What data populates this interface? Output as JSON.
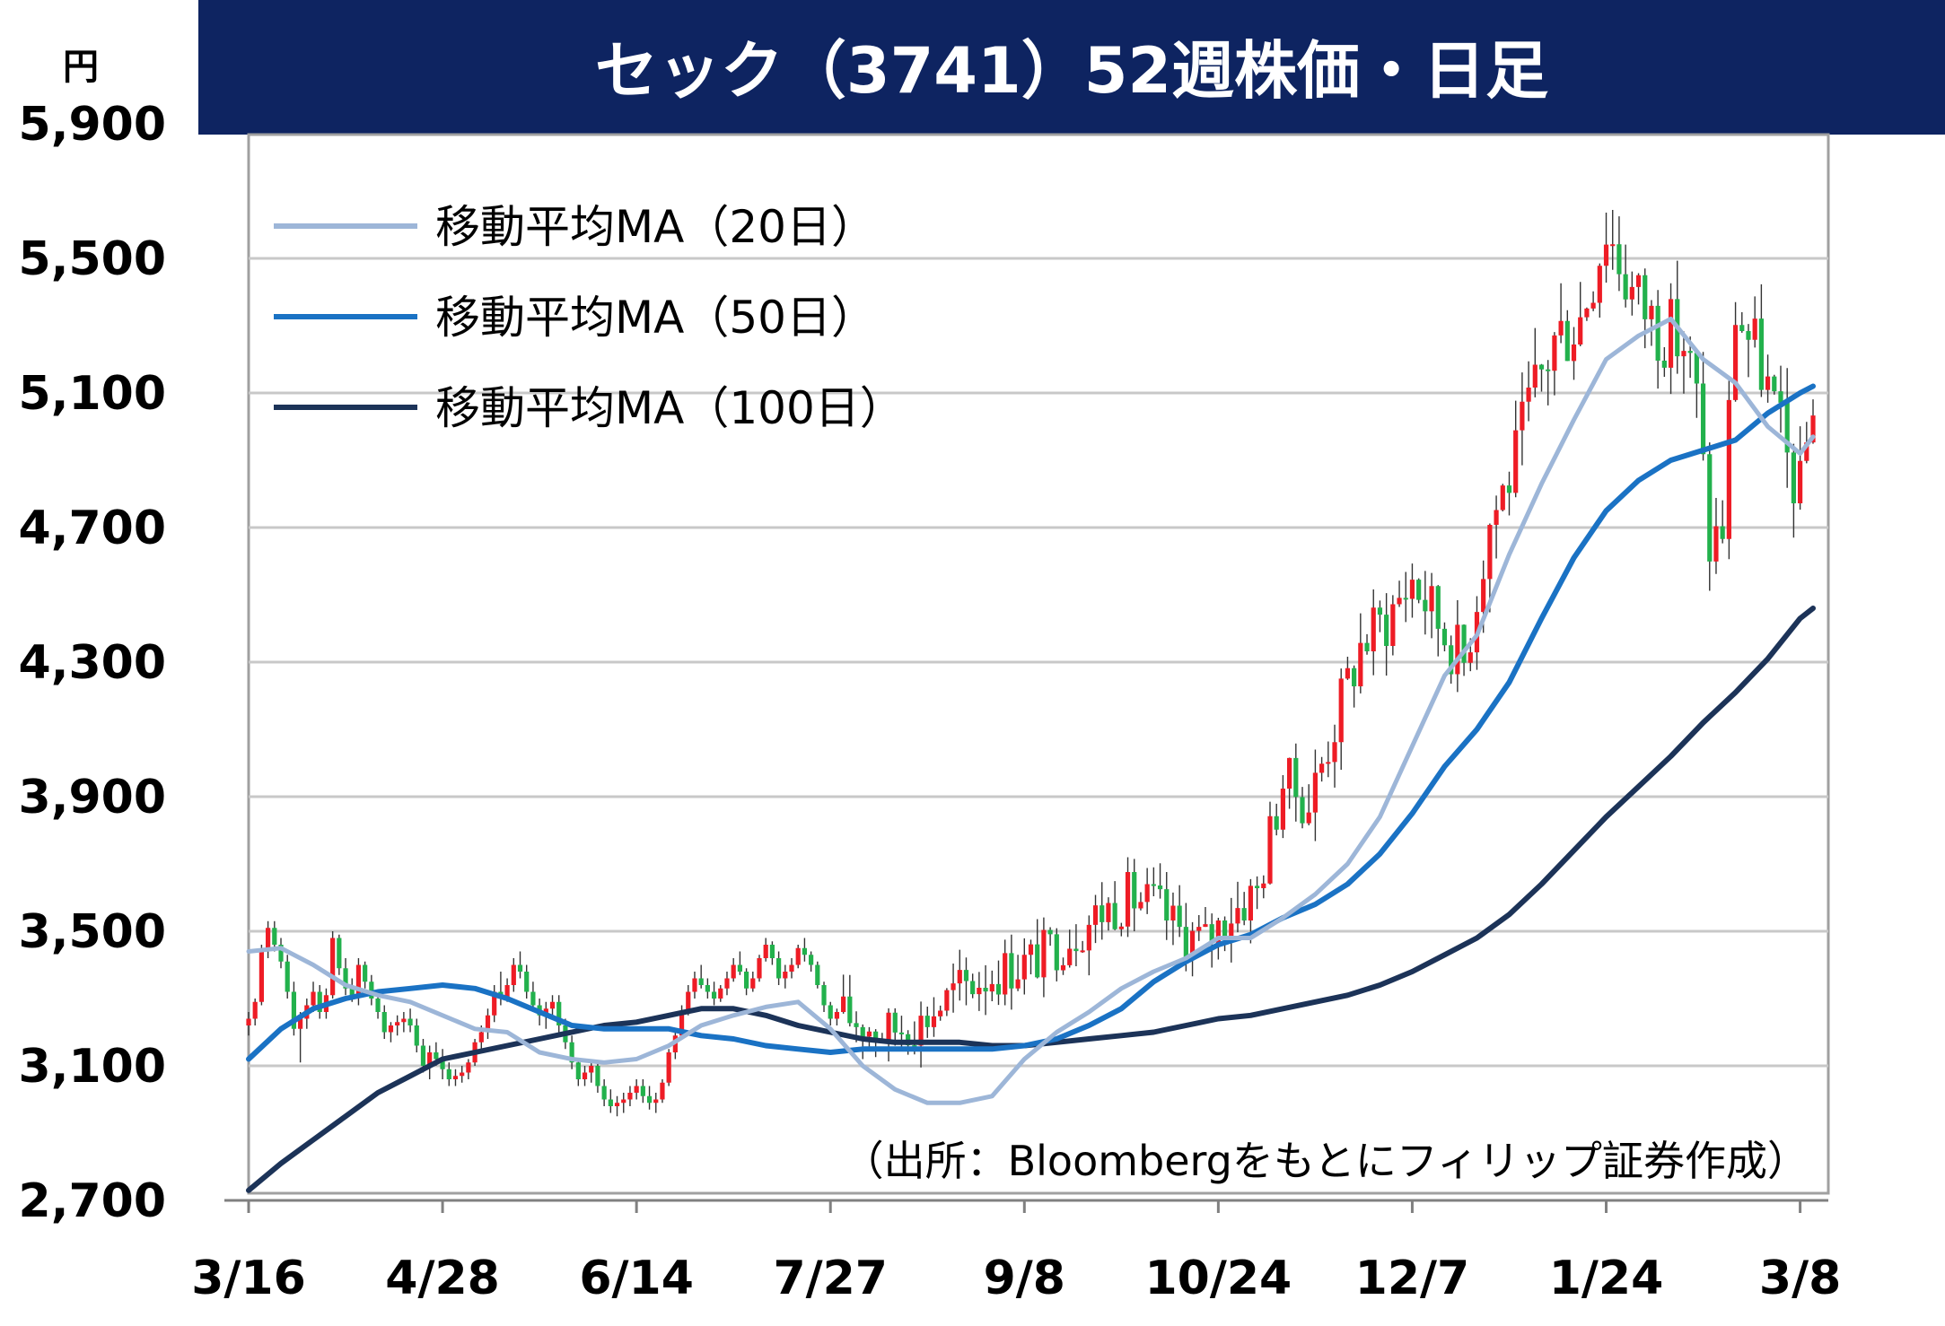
{
  "chart_data": {
    "type": "candlestick",
    "title": "セック（3741）52週株価・日足",
    "unit": "円",
    "source": "（出所：Bloombergをもとにフィリップ証券作成）",
    "ylim": [
      2700,
      5900
    ],
    "yticks": [
      2700,
      3100,
      3500,
      3900,
      4300,
      4700,
      5100,
      5500,
      5900
    ],
    "ytick_labels": [
      "2,700",
      "3,100",
      "3,500",
      "3,900",
      "4,300",
      "4,700",
      "5,100",
      "5,500",
      "5,900"
    ],
    "xtick_labels": [
      "3/16",
      "4/28",
      "6/14",
      "7/27",
      "9/8",
      "10/24",
      "12/7",
      "1/24",
      "3/8"
    ],
    "xtick_index": [
      0,
      30,
      60,
      90,
      120,
      150,
      180,
      210,
      240
    ],
    "grid": "horizontal",
    "legend_position": "top-left",
    "colors": {
      "up": "#ee1c25",
      "down": "#22b14c",
      "ma20": "#9db6d8",
      "ma50": "#1a72c4",
      "ma100": "#1c3358",
      "title_bg": "#0e2461",
      "grid": "#c8c8c8"
    },
    "series": [
      {
        "name": "移動平均MA（20日）",
        "key": "ma20"
      },
      {
        "name": "移動平均MA（50日）",
        "key": "ma50"
      },
      {
        "name": "移動平均MA（100日）",
        "key": "ma100"
      }
    ],
    "ma20": [
      [
        0,
        3440
      ],
      [
        5,
        3450
      ],
      [
        10,
        3400
      ],
      [
        15,
        3340
      ],
      [
        20,
        3310
      ],
      [
        25,
        3290
      ],
      [
        30,
        3250
      ],
      [
        35,
        3210
      ],
      [
        40,
        3200
      ],
      [
        45,
        3140
      ],
      [
        50,
        3120
      ],
      [
        55,
        3110
      ],
      [
        60,
        3120
      ],
      [
        65,
        3160
      ],
      [
        70,
        3220
      ],
      [
        75,
        3250
      ],
      [
        80,
        3275
      ],
      [
        85,
        3290
      ],
      [
        90,
        3210
      ],
      [
        95,
        3100
      ],
      [
        100,
        3030
      ],
      [
        105,
        2990
      ],
      [
        110,
        2990
      ],
      [
        115,
        3010
      ],
      [
        120,
        3120
      ],
      [
        125,
        3200
      ],
      [
        130,
        3260
      ],
      [
        135,
        3330
      ],
      [
        140,
        3380
      ],
      [
        145,
        3420
      ],
      [
        150,
        3480
      ],
      [
        155,
        3480
      ],
      [
        160,
        3540
      ],
      [
        165,
        3610
      ],
      [
        170,
        3700
      ],
      [
        175,
        3840
      ],
      [
        180,
        4050
      ],
      [
        185,
        4260
      ],
      [
        190,
        4380
      ],
      [
        195,
        4620
      ],
      [
        200,
        4830
      ],
      [
        205,
        5020
      ],
      [
        210,
        5200
      ],
      [
        215,
        5270
      ],
      [
        220,
        5320
      ],
      [
        225,
        5200
      ],
      [
        230,
        5130
      ],
      [
        235,
        5000
      ],
      [
        240,
        4920
      ],
      [
        242,
        4970
      ]
    ],
    "ma50": [
      [
        0,
        3120
      ],
      [
        5,
        3210
      ],
      [
        10,
        3270
      ],
      [
        15,
        3300
      ],
      [
        20,
        3320
      ],
      [
        25,
        3330
      ],
      [
        30,
        3340
      ],
      [
        35,
        3330
      ],
      [
        40,
        3300
      ],
      [
        45,
        3260
      ],
      [
        50,
        3220
      ],
      [
        55,
        3210
      ],
      [
        60,
        3210
      ],
      [
        65,
        3210
      ],
      [
        70,
        3190
      ],
      [
        75,
        3180
      ],
      [
        80,
        3160
      ],
      [
        85,
        3150
      ],
      [
        90,
        3140
      ],
      [
        95,
        3150
      ],
      [
        100,
        3150
      ],
      [
        105,
        3150
      ],
      [
        110,
        3150
      ],
      [
        115,
        3150
      ],
      [
        120,
        3160
      ],
      [
        125,
        3180
      ],
      [
        130,
        3220
      ],
      [
        135,
        3270
      ],
      [
        140,
        3350
      ],
      [
        145,
        3410
      ],
      [
        150,
        3460
      ],
      [
        155,
        3490
      ],
      [
        160,
        3540
      ],
      [
        165,
        3580
      ],
      [
        170,
        3640
      ],
      [
        175,
        3730
      ],
      [
        180,
        3850
      ],
      [
        185,
        3990
      ],
      [
        190,
        4100
      ],
      [
        195,
        4240
      ],
      [
        200,
        4430
      ],
      [
        205,
        4610
      ],
      [
        210,
        4750
      ],
      [
        215,
        4840
      ],
      [
        220,
        4900
      ],
      [
        225,
        4930
      ],
      [
        230,
        4960
      ],
      [
        235,
        5040
      ],
      [
        240,
        5100
      ],
      [
        242,
        5120
      ]
    ],
    "ma100": [
      [
        0,
        2730
      ],
      [
        5,
        2810
      ],
      [
        10,
        2880
      ],
      [
        15,
        2950
      ],
      [
        20,
        3020
      ],
      [
        25,
        3070
      ],
      [
        30,
        3120
      ],
      [
        35,
        3140
      ],
      [
        40,
        3160
      ],
      [
        45,
        3180
      ],
      [
        50,
        3200
      ],
      [
        55,
        3220
      ],
      [
        60,
        3230
      ],
      [
        65,
        3250
      ],
      [
        70,
        3270
      ],
      [
        75,
        3270
      ],
      [
        80,
        3250
      ],
      [
        85,
        3220
      ],
      [
        90,
        3200
      ],
      [
        95,
        3180
      ],
      [
        100,
        3170
      ],
      [
        105,
        3170
      ],
      [
        110,
        3170
      ],
      [
        115,
        3160
      ],
      [
        120,
        3160
      ],
      [
        125,
        3170
      ],
      [
        130,
        3180
      ],
      [
        135,
        3190
      ],
      [
        140,
        3200
      ],
      [
        145,
        3220
      ],
      [
        150,
        3240
      ],
      [
        155,
        3250
      ],
      [
        160,
        3270
      ],
      [
        165,
        3290
      ],
      [
        170,
        3310
      ],
      [
        175,
        3340
      ],
      [
        180,
        3380
      ],
      [
        185,
        3430
      ],
      [
        190,
        3480
      ],
      [
        195,
        3550
      ],
      [
        200,
        3640
      ],
      [
        205,
        3740
      ],
      [
        210,
        3840
      ],
      [
        215,
        3930
      ],
      [
        220,
        4020
      ],
      [
        225,
        4120
      ],
      [
        230,
        4210
      ],
      [
        235,
        4310
      ],
      [
        240,
        4430
      ],
      [
        242,
        4460
      ]
    ],
    "candles_ohlc": [
      [
        3220,
        3260,
        3190,
        3240
      ],
      [
        3240,
        3300,
        3220,
        3290
      ],
      [
        3290,
        3460,
        3280,
        3440
      ],
      [
        3440,
        3530,
        3420,
        3510
      ],
      [
        3510,
        3530,
        3440,
        3460
      ],
      [
        3460,
        3480,
        3390,
        3410
      ],
      [
        3410,
        3430,
        3300,
        3320
      ],
      [
        3320,
        3350,
        3190,
        3210
      ],
      [
        3210,
        3260,
        3110,
        3240
      ],
      [
        3240,
        3300,
        3210,
        3280
      ],
      [
        3280,
        3350,
        3260,
        3320
      ],
      [
        3320,
        3340,
        3240,
        3260
      ],
      [
        3260,
        3330,
        3240,
        3310
      ],
      [
        3310,
        3500,
        3300,
        3480
      ],
      [
        3480,
        3490,
        3370,
        3390
      ],
      [
        3390,
        3420,
        3310,
        3330
      ],
      [
        3330,
        3360,
        3290,
        3310
      ],
      [
        3310,
        3420,
        3280,
        3400
      ],
      [
        3400,
        3410,
        3330,
        3350
      ],
      [
        3350,
        3370,
        3280,
        3300
      ],
      [
        3300,
        3320,
        3240,
        3260
      ],
      [
        3260,
        3280,
        3180,
        3200
      ],
      [
        3200,
        3230,
        3170,
        3220
      ],
      [
        3220,
        3250,
        3190,
        3230
      ],
      [
        3230,
        3260,
        3200,
        3240
      ],
      [
        3240,
        3270,
        3200,
        3220
      ],
      [
        3220,
        3240,
        3140,
        3160
      ],
      [
        3160,
        3180,
        3080,
        3100
      ],
      [
        3100,
        3160,
        3060,
        3140
      ],
      [
        3140,
        3170,
        3100,
        3120
      ],
      [
        3120,
        3150,
        3060,
        3090
      ],
      [
        3090,
        3110,
        3040,
        3060
      ],
      [
        3060,
        3090,
        3040,
        3070
      ],
      [
        3070,
        3100,
        3050,
        3080
      ],
      [
        3080,
        3120,
        3060,
        3110
      ],
      [
        3110,
        3180,
        3100,
        3170
      ],
      [
        3170,
        3220,
        3150,
        3200
      ],
      [
        3200,
        3270,
        3180,
        3250
      ],
      [
        3250,
        3340,
        3230,
        3320
      ],
      [
        3320,
        3380,
        3280,
        3300
      ],
      [
        3300,
        3360,
        3290,
        3340
      ],
      [
        3340,
        3420,
        3320,
        3400
      ],
      [
        3400,
        3440,
        3360,
        3380
      ],
      [
        3380,
        3400,
        3300,
        3320
      ],
      [
        3320,
        3350,
        3260,
        3280
      ],
      [
        3280,
        3300,
        3220,
        3250
      ],
      [
        3250,
        3290,
        3210,
        3270
      ],
      [
        3270,
        3310,
        3240,
        3290
      ],
      [
        3290,
        3310,
        3200,
        3220
      ],
      [
        3220,
        3240,
        3150,
        3170
      ],
      [
        3170,
        3190,
        3090,
        3110
      ],
      [
        3110,
        3120,
        3040,
        3060
      ],
      [
        3060,
        3100,
        3040,
        3080
      ],
      [
        3080,
        3120,
        3050,
        3100
      ],
      [
        3100,
        3110,
        3020,
        3040
      ],
      [
        3040,
        3060,
        2980,
        3000
      ],
      [
        3000,
        3030,
        2960,
        2980
      ],
      [
        2980,
        3010,
        2950,
        2990
      ],
      [
        2990,
        3020,
        2960,
        3000
      ],
      [
        3000,
        3040,
        2980,
        3020
      ],
      [
        3020,
        3060,
        3000,
        3040
      ],
      [
        3040,
        3060,
        2990,
        3010
      ],
      [
        3010,
        3040,
        2970,
        2990
      ],
      [
        2990,
        3020,
        2960,
        3000
      ],
      [
        3000,
        3060,
        2990,
        3050
      ],
      [
        3050,
        3150,
        3040,
        3140
      ],
      [
        3140,
        3210,
        3120,
        3190
      ],
      [
        3190,
        3280,
        3180,
        3260
      ],
      [
        3260,
        3340,
        3250,
        3320
      ],
      [
        3320,
        3380,
        3300,
        3360
      ],
      [
        3360,
        3400,
        3330,
        3340
      ],
      [
        3340,
        3360,
        3300,
        3320
      ],
      [
        3320,
        3350,
        3280,
        3300
      ],
      [
        3300,
        3340,
        3290,
        3330
      ],
      [
        3330,
        3380,
        3310,
        3360
      ],
      [
        3360,
        3420,
        3350,
        3400
      ],
      [
        3400,
        3440,
        3370,
        3380
      ],
      [
        3380,
        3390,
        3310,
        3330
      ],
      [
        3330,
        3380,
        3320,
        3360
      ],
      [
        3360,
        3430,
        3350,
        3420
      ],
      [
        3420,
        3480,
        3410,
        3460
      ],
      [
        3460,
        3470,
        3400,
        3420
      ],
      [
        3420,
        3440,
        3340,
        3360
      ],
      [
        3360,
        3400,
        3330,
        3380
      ],
      [
        3380,
        3420,
        3360,
        3400
      ],
      [
        3400,
        3460,
        3390,
        3450
      ],
      [
        3450,
        3480,
        3410,
        3430
      ],
      [
        3430,
        3440,
        3380,
        3400
      ],
      [
        3400,
        3410,
        3330,
        3340
      ],
      [
        3340,
        3350,
        3260,
        3280
      ],
      [
        3280,
        3290,
        3220,
        3240
      ],
      [
        3240,
        3270,
        3220,
        3260
      ]
    ]
  }
}
